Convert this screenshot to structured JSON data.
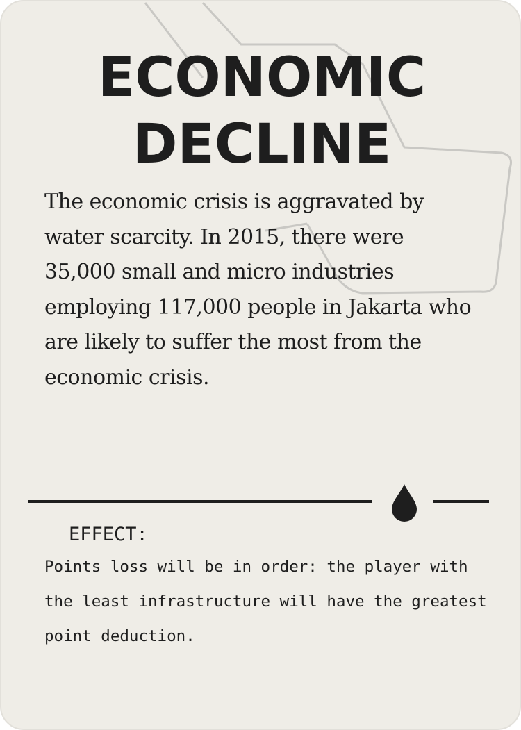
{
  "card": {
    "title_line1": "ECONOMIC",
    "title_line2": "DECLINE",
    "description": "The economic crisis is aggravated by water scarcity. In 2015, there were 35,000 small and micro industries employing 117,000 people in Jakarta who are likely to suffer the most from the economic crisis.",
    "effect_label": "EFFECT:",
    "effect_text": "Points loss will be in order: the player with the least infrastructure will have the greatest point deduction.",
    "icon": "water-drop-icon",
    "decoration": "downward-trend-arrow"
  },
  "colors": {
    "background": "#efede7",
    "ink": "#1e1e1e",
    "arrow_outline": "#c9c8c4"
  }
}
